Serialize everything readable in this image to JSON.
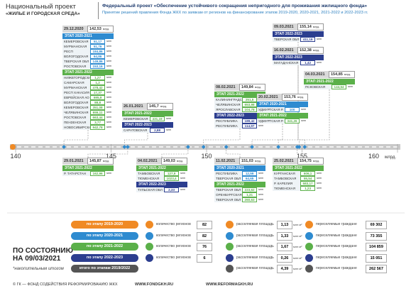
{
  "header": {
    "project": "Национальный проект",
    "project_name": "«ЖИЛЬЕ И ГОРОДСКАЯ СРЕДА»",
    "title": "Федеральный проект «Обеспечение устойчивого сокращения  непригодного для проживания жилищного фонда»",
    "subtitle": "Принятие  решений правления Фонда ЖКХ по заявкам  от регионов на финансирование этапов 2019-2020, 2020-2021, 2021-2022 и 2022-2023 гг."
  },
  "units": {
    "bn": "млрд.",
    "mn": "млн"
  },
  "timeline": {
    "xlim": [
      140,
      160
    ],
    "xticks": [
      140,
      145,
      150,
      155,
      160
    ]
  },
  "cards": [
    {
      "date": "29.12.2020",
      "total": {
        "value": 142.53,
        "label": "142,53"
      },
      "stages": [
        {
          "name": "ЭТАП 2020-2021",
          "color": "#2e8bd0",
          "rows": [
            [
              "КЕМЕРОВСКАЯ ОБЛ",
              "51,17"
            ],
            [
              "МУРМАНСКАЯ ОБЛ",
              "51,76"
            ],
            [
              "РЕСП БАШКОРТОСТАН",
              "184,86"
            ],
            [
              "ВОЛОГОДСКАЯ ОБЛ",
              "64,86"
            ],
            [
              "ТВЕРСКАЯ ОБЛ",
              "149,86"
            ],
            [
              "РОСТОВСКАЯ ОБЛ",
              "153,16"
            ]
          ]
        },
        {
          "name": "ЭТАП 2021-2022",
          "color": "#5bb04a",
          "rows": [
            [
              "НИЖЕГОРОДСКАЯ ОБЛ",
              "1,27"
            ],
            [
              "САМАРСКАЯ ОБЛ",
              "1,2"
            ],
            [
              "МУРМАНСКАЯ ОБЛ",
              "478,42"
            ],
            [
              "РЕСП ХАКАСИЯ",
              "17,37"
            ],
            [
              "ЕВРЕЙСКАЯ АО",
              "695,9"
            ],
            [
              "ВОЛОГОДСКАЯ ОБЛ",
              "88,8"
            ],
            [
              "КЕМЕРОВСКАЯ ОБЛ",
              "351,08"
            ],
            [
              "ЧЕЛЯБИНСКАЯ ОБЛ",
              "655,11"
            ],
            [
              "РОСТОВСКАЯ ОБЛ",
              "663,44"
            ],
            [
              "ПЕНЗЕНСКАЯ ОБЛ",
              "3,77"
            ],
            [
              "НОВОСИБИРСКАЯ ОБЛ",
              "942,78"
            ]
          ]
        }
      ]
    },
    {
      "date": "26.01.2021",
      "total": {
        "value": 145.7,
        "label": "145,7"
      },
      "stages": [
        {
          "name": "ЭТАП 2021-2022",
          "color": "#5bb04a",
          "rows": [
            [
              "КЕМЕРОВСКАЯ ОБЛ",
              "431,19"
            ]
          ]
        },
        {
          "name": "ЭТАП 2022-2023",
          "color": "#2c3e8f",
          "rows": [
            [
              "САРАТОВСКАЯ ОБЛ",
              "2,88"
            ]
          ]
        }
      ]
    },
    {
      "date": "08.02.2021",
      "total": {
        "value": 149.84,
        "label": "149,84"
      },
      "stages": [
        {
          "name": "ЭТАП 2021-2022",
          "color": "#5bb04a",
          "rows": [
            [
              "КАЛИНИНГРАДСКАЯ ОБЛ",
              "251,5"
            ],
            [
              "ЧЕЛЯБИНСКАЯ ОБЛ",
              "653,98"
            ],
            [
              "ЯРОСЛАВСКАЯ ОБЛ",
              "104,78"
            ]
          ]
        },
        {
          "name": "ЭТАП 2022-2023",
          "color": "#2c3e8f",
          "rows": [
            [
              "РЕСПУБЛИКА АДЫГЕЯ",
              "189,42"
            ],
            [
              "РЕСПУБЛИКА КАЛМЫКИЯ",
              "114,97"
            ]
          ]
        }
      ]
    },
    {
      "date": "09.03.2021",
      "total": {
        "value": 155.14,
        "label": "155,14"
      },
      "stages": [
        {
          "name": "ЭТАП 2022-2023",
          "color": "#2c3e8f",
          "rows": [
            [
              "ТВЕРСКАЯ ОБЛ",
              "411,19"
            ]
          ]
        }
      ]
    },
    {
      "date": "16.02.2021",
      "total": {
        "value": 152.38,
        "label": "152,38"
      },
      "stages": [
        {
          "name": "ЭТАП 2022-2023",
          "color": "#2c3e8f",
          "rows": [
            [
              "МАГАДАНСКАЯ ОБЛ",
              "1,42"
            ]
          ]
        }
      ]
    },
    {
      "date": "20.02.2021",
      "total": {
        "value": 153.76,
        "label": "153,76"
      },
      "stages": [
        {
          "name": "ЭТАП 2020-2021",
          "color": "#2e8bd0",
          "rows": [
            [
              "УДМУРТСКАЯ Р.",
              "100"
            ]
          ]
        },
        {
          "name": "ЭТАП 2021-2022",
          "color": "#5bb04a",
          "rows": [
            [
              "УДМУРТСКАЯ Р.",
              "341,26"
            ]
          ]
        }
      ]
    },
    {
      "date": "04.03.2021",
      "total": {
        "value": 154.85,
        "label": "154,85"
      },
      "stages": [
        {
          "name": "ЭТАП 2021-2022",
          "color": "#5bb04a",
          "rows": [
            [
              "ПСКОВСКАЯ ОБЛ",
              "144,54"
            ]
          ]
        }
      ]
    },
    {
      "date": "29.01.2021",
      "total": {
        "value": 145.87,
        "label": "145,87"
      },
      "stages": [
        {
          "name": "ЭТАП 2021-2022",
          "color": "#5bb04a",
          "rows": [
            [
              "Р. ТАТАРСТАН",
              "162,96"
            ]
          ]
        }
      ]
    },
    {
      "date": "04.02.2021",
      "total": {
        "value": 149.03,
        "label": "149,03"
      },
      "stages": [
        {
          "name": "ЭТАП 2021-2022",
          "color": "#5bb04a",
          "rows": [
            [
              "ТАМБОВСКАЯ ОБЛ",
              "127,9"
            ],
            [
              "ТЮМЕНСКАЯ ОБЛ",
              "1023,4"
            ]
          ]
        },
        {
          "name": "ЭТАП 2022-2023",
          "color": "#2c3e8f",
          "rows": [
            [
              "ТУЛЬСКАЯ ОБЛ",
              "2,33"
            ]
          ]
        }
      ]
    },
    {
      "date": "11.02.2021",
      "total": {
        "value": 151.03,
        "label": "151,03"
      },
      "stages": [
        {
          "name": "ЭТАП 2020-2021",
          "color": "#2e8bd0",
          "rows": [
            [
              "РЕСПУБЛИКА ДАГЕСТАН",
              "12,59"
            ],
            [
              "ТВЕРСКАЯ ОБЛ",
              "64,65"
            ]
          ]
        },
        {
          "name": "ЭТАП 2021-2022",
          "color": "#5bb04a",
          "rows": [
            [
              "ТВЕРСКАЯ ОБЛ",
              "223,62"
            ],
            [
              "ОРЕНБУРГСКАЯ ОБЛ",
              "1,31"
            ],
            [
              "ТВЕРСКАЯ ОБЛ",
              "260,63"
            ]
          ]
        }
      ]
    },
    {
      "date": "25.02.2021",
      "total": {
        "value": 154.75,
        "label": "154,75"
      },
      "stages": [
        {
          "name": "ЭТАП 2021-2022",
          "color": "#5bb04a",
          "rows": [
            [
              "КУРГАНСКАЯ ОБЛ",
              "606,1"
            ],
            [
              "ТАМБОВСКАЯ ОБЛ",
              "55,54"
            ],
            [
              "Р. КАРЕЛИЯ",
              "583,17"
            ],
            [
              "ТЮМЕНСКАЯ ОБЛ",
              "1,23"
            ]
          ]
        }
      ]
    }
  ],
  "summary": {
    "as_of": [
      "ПО СОСТОЯНИЮ",
      "НА 09/03/2021"
    ],
    "note": "*накопительным итогом",
    "regions_label": "количество регионов",
    "area_label": "расселяемая площадь",
    "area_unit": "млн м²",
    "people_label": "переселяемые граждане",
    "rows": [
      {
        "stage": "по этапу 2019-2020",
        "color": "#f08a24",
        "regions": 82,
        "area": "1,13",
        "people": "69 302"
      },
      {
        "stage": "по этапу 2020-2021",
        "color": "#2e8bd0",
        "regions": 82,
        "area": "1,33",
        "people": "73 355"
      },
      {
        "stage": "по этапу 2021-2022",
        "color": "#5bb04a",
        "regions": 76,
        "area": "1,67",
        "people": "104 859"
      },
      {
        "stage": "по этапу 2022-2023",
        "color": "#2c3e8f",
        "regions": 6,
        "area": "0,26",
        "people": "15 051"
      },
      {
        "stage": "итого по этапам 2019/2022",
        "color": "#555555",
        "area": "4,39",
        "people": "262 567"
      }
    ]
  },
  "footer": {
    "copyright": "© ГК — ФОНД СОДЕЙСТВИЯ РЕФОРМИРОВАНИЮ ЖКХ",
    "site1": "WWW.FONDGKH.RU",
    "site2": "WWW.REFORMAGKH.RU"
  }
}
